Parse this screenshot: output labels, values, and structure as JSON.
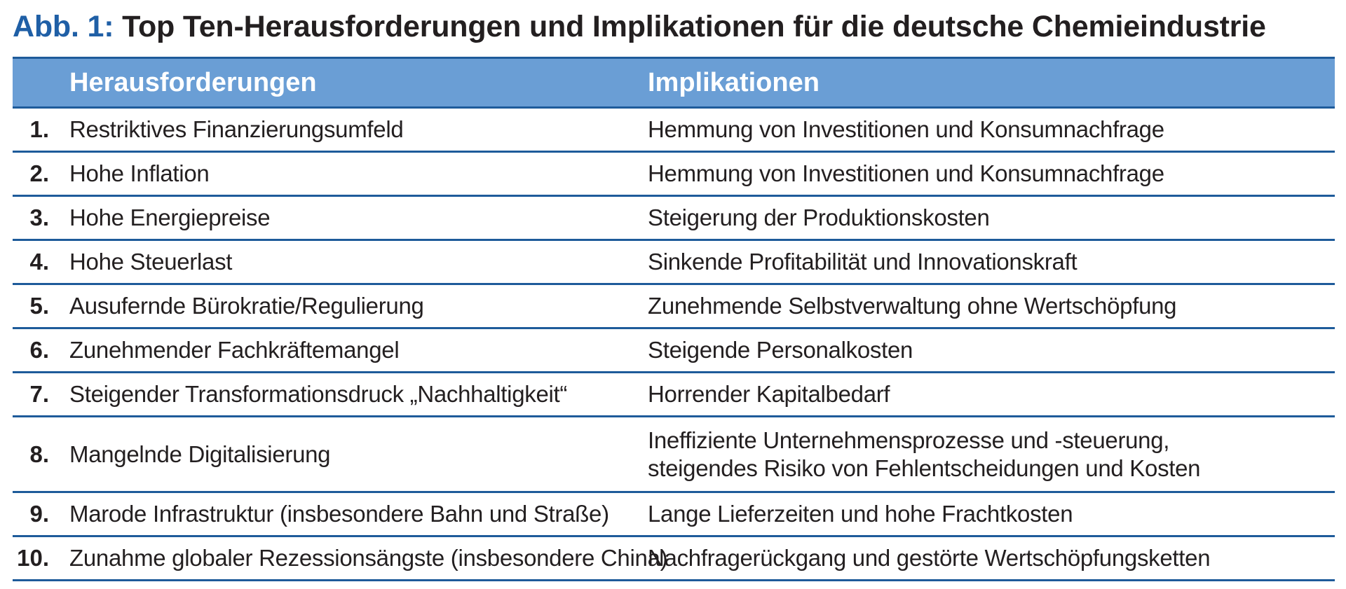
{
  "title": {
    "label": "Abb. 1:",
    "text": "Top Ten-Herausforderungen und Implikationen für die deutsche Chemieindustrie"
  },
  "table": {
    "headers": {
      "challenges": "Herausforderungen",
      "implications": "Implikationen"
    },
    "rows": [
      {
        "num": "1.",
        "challenge": "Restriktives Finanzierungsumfeld",
        "implication": [
          "Hemmung von Investitionen und Konsumnachfrage"
        ]
      },
      {
        "num": "2.",
        "challenge": "Hohe Inflation",
        "implication": [
          "Hemmung von Investitionen und Konsumnachfrage"
        ]
      },
      {
        "num": "3.",
        "challenge": "Hohe Energiepreise",
        "implication": [
          "Steigerung der Produktionskosten"
        ]
      },
      {
        "num": "4.",
        "challenge": "Hohe Steuerlast",
        "implication": [
          "Sinkende Profitabilität und Innovationskraft"
        ]
      },
      {
        "num": "5.",
        "challenge": "Ausufernde Bürokratie/Regulierung",
        "implication": [
          "Zunehmende Selbstverwaltung ohne Wertschöpfung"
        ]
      },
      {
        "num": "6.",
        "challenge": "Zunehmender Fachkräftemangel",
        "implication": [
          "Steigende Personalkosten"
        ]
      },
      {
        "num": "7.",
        "challenge": "Steigender Transformationsdruck „Nachhaltigkeit“",
        "implication": [
          "Horrender Kapitalbedarf"
        ]
      },
      {
        "num": "8.",
        "challenge": "Mangelnde Digitalisierung",
        "implication": [
          "Ineffiziente Unternehmensprozesse und -steuerung,",
          "steigendes Risiko von Fehlentscheidungen und Kosten"
        ]
      },
      {
        "num": "9.",
        "challenge": "Marode Infrastruktur (insbesondere Bahn und Straße)",
        "implication": [
          "Lange Lieferzeiten und hohe Frachtkosten"
        ]
      },
      {
        "num": "10.",
        "challenge": "Zunahme globaler Rezessionsängste (insbesondere China)",
        "implication": [
          "Nachfragerückgang und gestörte Wertschöpfungsketten"
        ]
      }
    ]
  },
  "colors": {
    "title_label": "#1f5fa6",
    "header_bg": "#6a9ed5",
    "rule": "#1e5b9a",
    "text": "#231f20"
  }
}
